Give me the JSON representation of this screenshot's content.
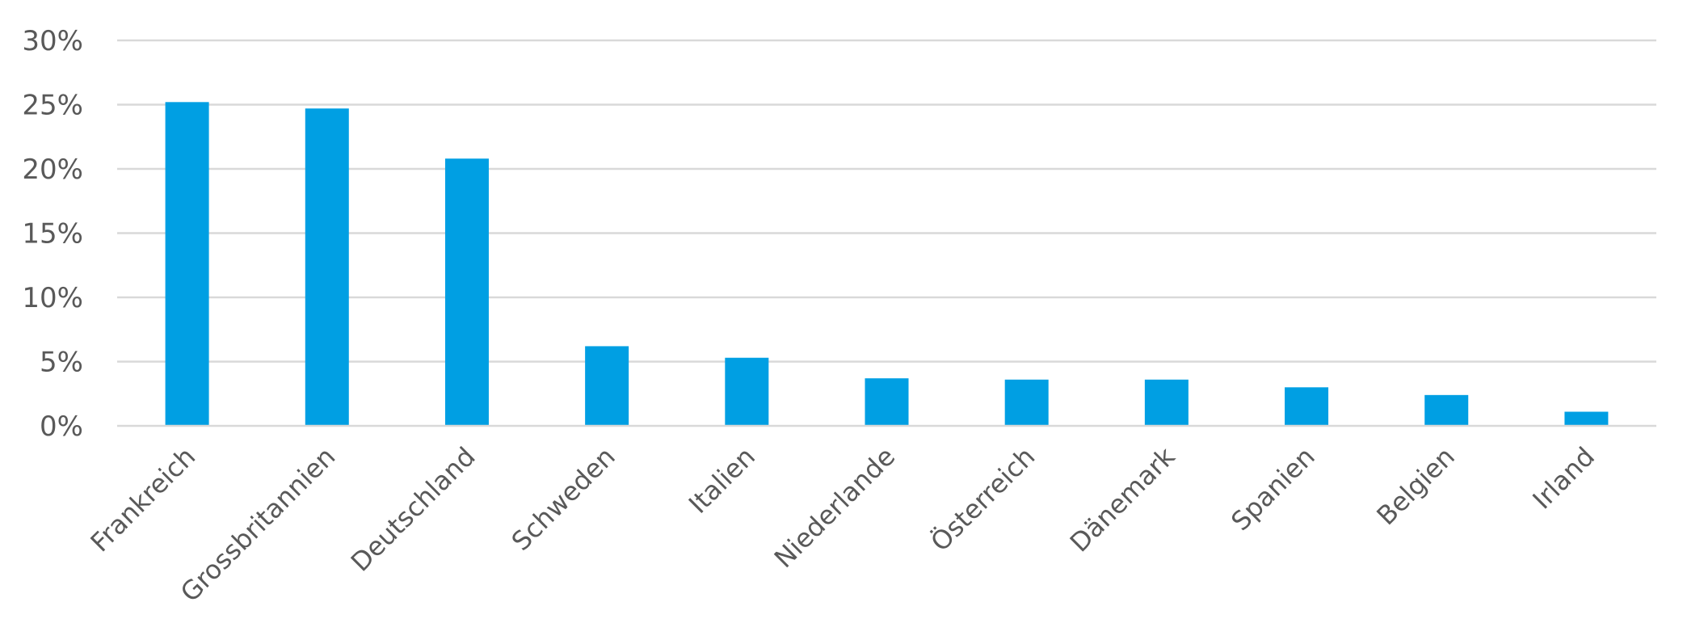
{
  "chart_data": {
    "type": "bar",
    "title": "",
    "xlabel": "",
    "ylabel": "",
    "categories": [
      "Frankreich",
      "Grossbritannien",
      "Deutschland",
      "Schweden",
      "Italien",
      "Niederlande",
      "Österreich",
      "Dänemark",
      "Spanien",
      "Belgien",
      "Irland"
    ],
    "values": [
      25.2,
      24.7,
      20.8,
      6.2,
      5.3,
      3.7,
      3.6,
      3.6,
      3.0,
      2.4,
      1.1
    ],
    "ylim": [
      0,
      30
    ],
    "yticks": [
      0,
      5,
      10,
      15,
      20,
      25,
      30
    ],
    "ytick_labels": [
      "0%",
      "5%",
      "10%",
      "15%",
      "20%",
      "25%",
      "30%"
    ],
    "value_format": "percent",
    "grid": true,
    "legend": "none",
    "colors": {
      "bar": "#009fe3",
      "grid": "#d9d9d9",
      "text": "#595959"
    }
  }
}
